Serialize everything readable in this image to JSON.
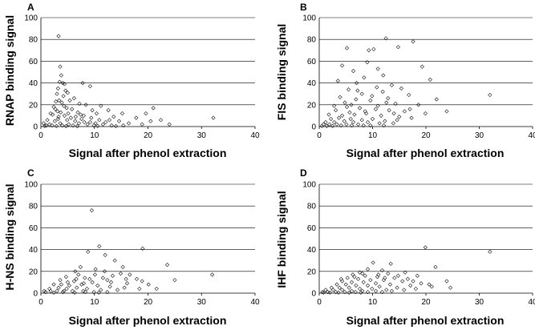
{
  "chart_data": [
    {
      "type": "scatter",
      "panel": "A",
      "xlabel": "Signal after phenol extraction",
      "ylabel": "RNAP binding signal",
      "xlim": [
        0,
        40
      ],
      "ylim": [
        0,
        100
      ],
      "xticks": [
        0,
        10,
        20,
        30,
        40
      ],
      "yticks": [
        0,
        20,
        40,
        60,
        80,
        100
      ],
      "grid": true,
      "points": [
        [
          3.3,
          83
        ],
        [
          3.6,
          55
        ],
        [
          3.8,
          47
        ],
        [
          3.5,
          41
        ],
        [
          4.1,
          40
        ],
        [
          4.4,
          39
        ],
        [
          7.8,
          40
        ],
        [
          9.2,
          37
        ],
        [
          3.2,
          35
        ],
        [
          4.6,
          33
        ],
        [
          5.0,
          31
        ],
        [
          3.0,
          30
        ],
        [
          4.2,
          28
        ],
        [
          6.2,
          26
        ],
        [
          5.4,
          24
        ],
        [
          2.8,
          23
        ],
        [
          3.9,
          22
        ],
        [
          7.2,
          21
        ],
        [
          8.4,
          20
        ],
        [
          11.2,
          19
        ],
        [
          2.4,
          18
        ],
        [
          4.8,
          17
        ],
        [
          5.8,
          16
        ],
        [
          9.6,
          15
        ],
        [
          12.6,
          15
        ],
        [
          3.1,
          14
        ],
        [
          6.9,
          13
        ],
        [
          10.4,
          12
        ],
        [
          15.2,
          12
        ],
        [
          21.0,
          17
        ],
        [
          19.6,
          12
        ],
        [
          2.2,
          11
        ],
        [
          4.4,
          10
        ],
        [
          8.0,
          10
        ],
        [
          13.6,
          9
        ],
        [
          17.8,
          8
        ],
        [
          22.4,
          6
        ],
        [
          3.3,
          9
        ],
        [
          5.6,
          8
        ],
        [
          7.6,
          7
        ],
        [
          10.9,
          6
        ],
        [
          14.6,
          5
        ],
        [
          20.5,
          5
        ],
        [
          32.2,
          8
        ],
        [
          1.2,
          6
        ],
        [
          2.6,
          5
        ],
        [
          6.4,
          5
        ],
        [
          9.2,
          4
        ],
        [
          12.1,
          4
        ],
        [
          16.4,
          3
        ],
        [
          18.9,
          2
        ],
        [
          24.0,
          2
        ],
        [
          0.5,
          3
        ],
        [
          1.6,
          2
        ],
        [
          3.6,
          3
        ],
        [
          5.2,
          2
        ],
        [
          7.1,
          3
        ],
        [
          8.7,
          2
        ],
        [
          11.6,
          2
        ],
        [
          13.2,
          1
        ],
        [
          15.4,
          1
        ],
        [
          1.0,
          1
        ],
        [
          2.1,
          1
        ],
        [
          4.0,
          1
        ],
        [
          6.0,
          1
        ],
        [
          9.9,
          1
        ],
        [
          0.7,
          0.5
        ],
        [
          2.9,
          0.5
        ],
        [
          4.7,
          0.4
        ],
        [
          6.8,
          0.3
        ],
        [
          10.6,
          0.5
        ],
        [
          14.0,
          0.4
        ],
        [
          1.8,
          12
        ],
        [
          3.7,
          13
        ],
        [
          4.9,
          6
        ],
        [
          6.5,
          9
        ],
        [
          8.1,
          4
        ],
        [
          9.4,
          8
        ],
        [
          3.4,
          24
        ],
        [
          2.7,
          16
        ],
        [
          4.3,
          19
        ],
        [
          5.1,
          12
        ],
        [
          3.2,
          7
        ],
        [
          7.4,
          11
        ],
        [
          10.2,
          3
        ],
        [
          12.8,
          6
        ]
      ]
    },
    {
      "type": "scatter",
      "panel": "B",
      "xlabel": "Signal after phenol extraction",
      "ylabel": "FIS binding signal",
      "xlim": [
        0,
        40
      ],
      "ylim": [
        0,
        100
      ],
      "xticks": [
        0,
        10,
        20,
        30,
        40
      ],
      "yticks": [
        0,
        20,
        40,
        60,
        80,
        100
      ],
      "grid": true,
      "points": [
        [
          12.5,
          81
        ],
        [
          17.6,
          78
        ],
        [
          14.8,
          73
        ],
        [
          5.2,
          72
        ],
        [
          10.2,
          71
        ],
        [
          9.3,
          70
        ],
        [
          19.3,
          55
        ],
        [
          4.3,
          56
        ],
        [
          9.0,
          59
        ],
        [
          11.0,
          53
        ],
        [
          6.4,
          51
        ],
        [
          12.0,
          47
        ],
        [
          8.4,
          45
        ],
        [
          20.8,
          43
        ],
        [
          3.5,
          42
        ],
        [
          7.0,
          40
        ],
        [
          13.6,
          38
        ],
        [
          10.8,
          36
        ],
        [
          15.4,
          35
        ],
        [
          5.5,
          34
        ],
        [
          11.9,
          32
        ],
        [
          8.0,
          30
        ],
        [
          16.8,
          29
        ],
        [
          32.0,
          29
        ],
        [
          22.0,
          25
        ],
        [
          3.9,
          27
        ],
        [
          6.9,
          25
        ],
        [
          9.6,
          24
        ],
        [
          12.6,
          22
        ],
        [
          14.3,
          21
        ],
        [
          18.6,
          20
        ],
        [
          2.8,
          19
        ],
        [
          5.2,
          18
        ],
        [
          7.6,
          17
        ],
        [
          10.6,
          16
        ],
        [
          13.1,
          15
        ],
        [
          16.0,
          14
        ],
        [
          19.9,
          12
        ],
        [
          23.9,
          14
        ],
        [
          1.8,
          11
        ],
        [
          4.3,
          10
        ],
        [
          6.6,
          11
        ],
        [
          8.8,
          12
        ],
        [
          11.6,
          10
        ],
        [
          15.0,
          9
        ],
        [
          17.3,
          8
        ],
        [
          2.2,
          7
        ],
        [
          3.7,
          8
        ],
        [
          5.9,
          7
        ],
        [
          8.0,
          6
        ],
        [
          10.0,
          7
        ],
        [
          12.3,
          5
        ],
        [
          14.6,
          6
        ],
        [
          1.2,
          4
        ],
        [
          2.8,
          4
        ],
        [
          4.7,
          5
        ],
        [
          6.4,
          4
        ],
        [
          9.1,
          4
        ],
        [
          11.3,
          3
        ],
        [
          13.9,
          3
        ],
        [
          0.8,
          2
        ],
        [
          1.9,
          2
        ],
        [
          3.3,
          2
        ],
        [
          5.1,
          2
        ],
        [
          7.3,
          2
        ],
        [
          9.6,
          1
        ],
        [
          12.1,
          1
        ],
        [
          0.5,
          0.5
        ],
        [
          1.4,
          0.5
        ],
        [
          2.5,
          0.5
        ],
        [
          4.1,
          1
        ],
        [
          6.1,
          1
        ],
        [
          8.3,
          1
        ],
        [
          3.1,
          15
        ],
        [
          4.8,
          22
        ],
        [
          7.2,
          33
        ],
        [
          9.9,
          28
        ],
        [
          12.9,
          26
        ],
        [
          6.0,
          20
        ],
        [
          8.6,
          14
        ],
        [
          11.0,
          19
        ],
        [
          5.7,
          13
        ],
        [
          14.0,
          12
        ],
        [
          17.0,
          16
        ]
      ]
    },
    {
      "type": "scatter",
      "panel": "C",
      "xlabel": "Signal after phenol extraction",
      "ylabel": "H-NS binding signal",
      "xlim": [
        0,
        40
      ],
      "ylim": [
        0,
        100
      ],
      "xticks": [
        0,
        10,
        20,
        30,
        40
      ],
      "yticks": [
        0,
        20,
        40,
        60,
        80,
        100
      ],
      "grid": true,
      "points": [
        [
          9.5,
          76
        ],
        [
          10.9,
          43
        ],
        [
          19.0,
          41
        ],
        [
          8.8,
          38
        ],
        [
          12.0,
          35
        ],
        [
          13.8,
          30
        ],
        [
          23.6,
          26
        ],
        [
          15.3,
          24
        ],
        [
          7.4,
          24
        ],
        [
          10.2,
          22
        ],
        [
          6.4,
          20
        ],
        [
          14.9,
          18
        ],
        [
          16.6,
          17
        ],
        [
          32.0,
          17
        ],
        [
          4.7,
          15
        ],
        [
          8.2,
          14
        ],
        [
          11.6,
          14
        ],
        [
          17.9,
          13
        ],
        [
          25.0,
          12
        ],
        [
          3.6,
          12
        ],
        [
          6.2,
          11
        ],
        [
          9.6,
          10
        ],
        [
          13.1,
          10
        ],
        [
          16.1,
          9
        ],
        [
          20.1,
          8
        ],
        [
          2.4,
          8
        ],
        [
          5.3,
          7
        ],
        [
          7.6,
          8
        ],
        [
          10.6,
          7
        ],
        [
          12.9,
          6
        ],
        [
          15.6,
          5
        ],
        [
          18.4,
          4
        ],
        [
          21.6,
          4
        ],
        [
          1.6,
          4
        ],
        [
          3.3,
          5
        ],
        [
          4.8,
          4
        ],
        [
          6.7,
          5
        ],
        [
          8.6,
          4
        ],
        [
          11.2,
          3
        ],
        [
          14.3,
          3
        ],
        [
          0.6,
          2
        ],
        [
          1.8,
          2
        ],
        [
          3.0,
          2
        ],
        [
          4.3,
          2
        ],
        [
          5.9,
          2
        ],
        [
          7.9,
          2
        ],
        [
          9.9,
          1
        ],
        [
          12.4,
          1
        ],
        [
          0.9,
          1
        ],
        [
          2.4,
          0.5
        ],
        [
          4.1,
          1
        ],
        [
          6.3,
          0.5
        ],
        [
          8.3,
          1
        ],
        [
          10.8,
          0.5
        ],
        [
          5.0,
          10
        ],
        [
          7.0,
          17
        ],
        [
          9.1,
          13
        ],
        [
          11.9,
          20
        ],
        [
          13.4,
          16
        ],
        [
          15.9,
          13
        ],
        [
          18.9,
          11
        ],
        [
          6.6,
          13
        ],
        [
          8.0,
          9
        ],
        [
          10.1,
          17
        ],
        [
          12.4,
          12
        ],
        [
          3.8,
          8
        ]
      ]
    },
    {
      "type": "scatter",
      "panel": "D",
      "xlabel": "Signal after phenol extraction",
      "ylabel": "IHF binding signal",
      "xlim": [
        0,
        40
      ],
      "ylim": [
        0,
        100
      ],
      "xticks": [
        0,
        10,
        20,
        30,
        40
      ],
      "yticks": [
        0,
        20,
        40,
        60,
        80,
        100
      ],
      "grid": true,
      "points": [
        [
          32.0,
          38
        ],
        [
          19.9,
          42
        ],
        [
          10.1,
          28
        ],
        [
          13.4,
          27
        ],
        [
          21.8,
          24
        ],
        [
          9.1,
          22
        ],
        [
          11.8,
          21
        ],
        [
          16.1,
          19
        ],
        [
          7.6,
          19
        ],
        [
          12.9,
          18
        ],
        [
          18.4,
          16
        ],
        [
          6.3,
          17
        ],
        [
          8.6,
          16
        ],
        [
          10.9,
          15
        ],
        [
          14.1,
          14
        ],
        [
          23.9,
          11
        ],
        [
          5.3,
          14
        ],
        [
          7.3,
          13
        ],
        [
          9.6,
          12
        ],
        [
          12.1,
          12
        ],
        [
          15.6,
          11
        ],
        [
          19.1,
          9
        ],
        [
          4.3,
          11
        ],
        [
          6.1,
          10
        ],
        [
          8.3,
          10
        ],
        [
          10.6,
          9
        ],
        [
          13.3,
          8
        ],
        [
          17.1,
          7
        ],
        [
          21.1,
          6
        ],
        [
          3.3,
          8
        ],
        [
          5.0,
          8
        ],
        [
          6.9,
          7
        ],
        [
          9.1,
          7
        ],
        [
          11.3,
          6
        ],
        [
          14.6,
          5
        ],
        [
          18.1,
          4
        ],
        [
          2.3,
          5
        ],
        [
          3.8,
          5
        ],
        [
          5.6,
          5
        ],
        [
          7.6,
          4
        ],
        [
          9.9,
          4
        ],
        [
          12.6,
          3
        ],
        [
          15.9,
          3
        ],
        [
          1.2,
          3
        ],
        [
          2.6,
          3
        ],
        [
          4.3,
          3
        ],
        [
          6.1,
          2
        ],
        [
          8.1,
          2
        ],
        [
          10.6,
          2
        ],
        [
          13.6,
          2
        ],
        [
          0.6,
          1
        ],
        [
          1.6,
          1
        ],
        [
          3.1,
          1
        ],
        [
          4.8,
          1
        ],
        [
          6.8,
          1
        ],
        [
          9.1,
          1
        ],
        [
          11.8,
          1
        ],
        [
          0.8,
          0.5
        ],
        [
          2.0,
          0.5
        ],
        [
          3.6,
          0.5
        ],
        [
          5.6,
          0.5
        ],
        [
          7.8,
          0.5
        ],
        [
          4.1,
          13
        ],
        [
          6.6,
          15
        ],
        [
          8.1,
          18
        ],
        [
          11.1,
          17
        ],
        [
          12.3,
          14
        ],
        [
          14.8,
          16
        ],
        [
          16.6,
          13
        ],
        [
          24.6,
          5
        ],
        [
          20.6,
          8
        ],
        [
          17.6,
          11
        ]
      ]
    }
  ]
}
